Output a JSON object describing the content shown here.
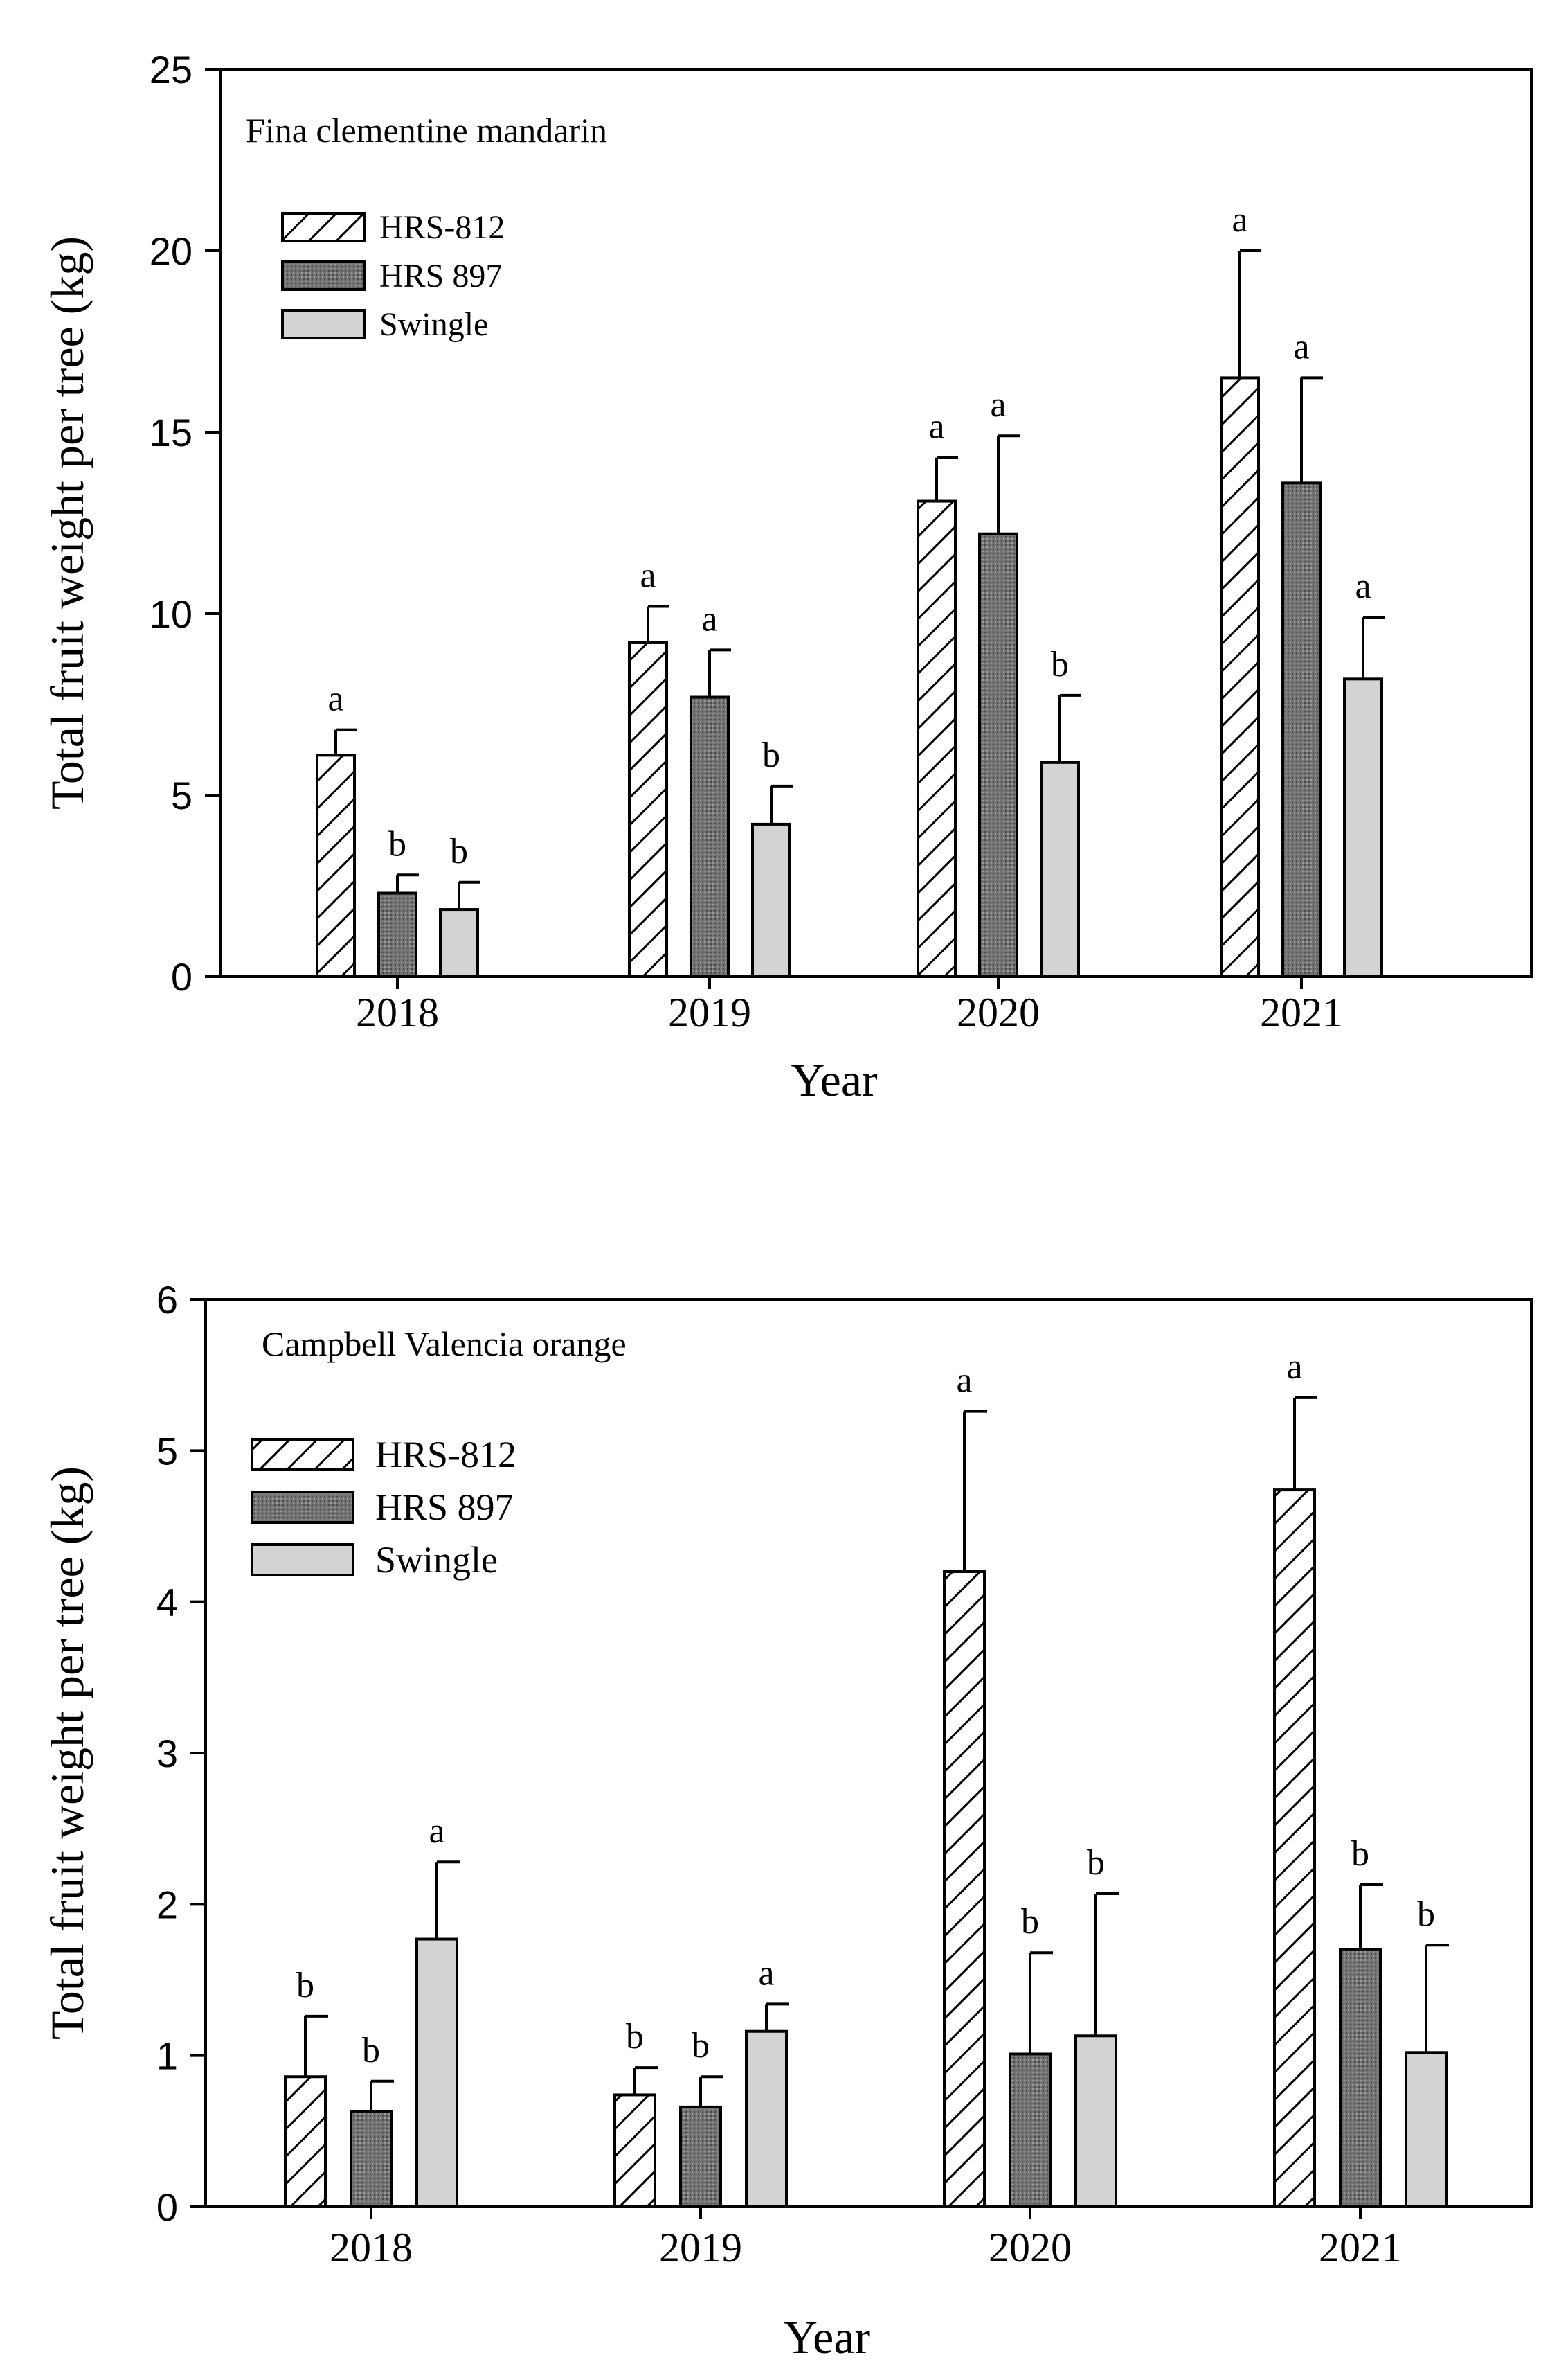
{
  "chart_data": [
    {
      "type": "bar",
      "title": "Fina clementine mandarin",
      "xlabel": "Year",
      "ylabel": "Total fruit weight per tree (kg)",
      "categories": [
        "2018",
        "2019",
        "2020",
        "2021"
      ],
      "ylim": [
        0,
        25
      ],
      "yticks": [
        "0",
        "5",
        "10",
        "15",
        "20",
        "25"
      ],
      "legend_position": "top-left",
      "series": [
        {
          "name": "HRS-812",
          "fill": "hatch",
          "color": "#ffffff",
          "values": [
            6.1,
            9.2,
            13.1,
            16.5
          ],
          "errors": [
            0.7,
            1.0,
            1.2,
            3.5
          ],
          "letters": [
            "a",
            "a",
            "a",
            "a"
          ]
        },
        {
          "name": "HRS 897",
          "fill": "dark",
          "color": "#707070",
          "values": [
            2.3,
            7.7,
            12.2,
            13.6
          ],
          "errors": [
            0.5,
            1.3,
            2.7,
            2.9
          ],
          "letters": [
            "b",
            "a",
            "a",
            "a"
          ]
        },
        {
          "name": "Swingle",
          "fill": "light",
          "color": "#d3d3d3",
          "values": [
            1.85,
            4.2,
            5.9,
            8.2
          ],
          "errors": [
            0.75,
            1.05,
            1.85,
            1.7
          ],
          "letters": [
            "b",
            "b",
            "b",
            "a"
          ]
        }
      ]
    },
    {
      "type": "bar",
      "title": "Campbell Valencia orange",
      "xlabel": "Year",
      "ylabel": "Total fruit weight per tree (kg)",
      "categories": [
        "2018",
        "2019",
        "2020",
        "2021"
      ],
      "ylim": [
        0,
        6
      ],
      "yticks": [
        "0",
        "1",
        "2",
        "3",
        "4",
        "5",
        "6"
      ],
      "legend_position": "top-left",
      "series": [
        {
          "name": "HRS-812",
          "fill": "hatch",
          "color": "#ffffff",
          "values": [
            0.86,
            0.74,
            4.2,
            4.74
          ],
          "errors": [
            0.4,
            0.18,
            1.06,
            0.61
          ],
          "letters": [
            "b",
            "b",
            "a",
            "a"
          ]
        },
        {
          "name": "HRS 897",
          "fill": "dark",
          "color": "#707070",
          "values": [
            0.63,
            0.66,
            1.01,
            1.7
          ],
          "errors": [
            0.2,
            0.2,
            0.67,
            0.43
          ],
          "letters": [
            "b",
            "b",
            "b",
            "b"
          ]
        },
        {
          "name": "Swingle",
          "fill": "light",
          "color": "#d3d3d3",
          "values": [
            1.77,
            1.16,
            1.13,
            1.02
          ],
          "errors": [
            0.51,
            0.18,
            0.94,
            0.71
          ],
          "letters": [
            "a",
            "a",
            "b",
            "b"
          ]
        }
      ]
    }
  ]
}
